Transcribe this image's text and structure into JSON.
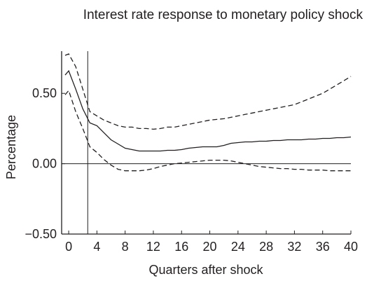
{
  "chart_data": {
    "type": "line",
    "title": "Interest rate response to monetary policy shock",
    "xlabel": "Quarters after shock",
    "ylabel": "Percentage",
    "xlim": [
      -1,
      40
    ],
    "ylim": [
      -0.5,
      0.8
    ],
    "x_ticks": [
      0,
      4,
      8,
      12,
      16,
      20,
      24,
      28,
      32,
      36,
      40
    ],
    "x_tick_labels": [
      "0",
      "4",
      "8",
      "12",
      "16",
      "20",
      "24",
      "28",
      "32",
      "36",
      "40"
    ],
    "y_ticks": [
      0.5,
      0.0,
      -0.5
    ],
    "y_tick_labels": [
      "0.50",
      "0.00",
      "−0.50"
    ],
    "reference_lines": {
      "horizontal_y": 0.0,
      "vertical_x": 2.7
    },
    "grid": false,
    "x": [
      -0.5,
      0,
      1,
      2,
      3,
      4,
      5,
      6,
      7,
      8,
      9,
      10,
      11,
      12,
      13,
      14,
      15,
      16,
      17,
      18,
      19,
      20,
      21,
      22,
      23,
      24,
      25,
      26,
      27,
      28,
      29,
      30,
      31,
      32,
      33,
      34,
      35,
      36,
      37,
      38,
      39,
      40
    ],
    "series": [
      {
        "style": "solid",
        "values": [
          0.63,
          0.66,
          0.53,
          0.39,
          0.29,
          0.27,
          0.22,
          0.17,
          0.14,
          0.11,
          0.1,
          0.09,
          0.09,
          0.09,
          0.09,
          0.095,
          0.095,
          0.1,
          0.11,
          0.115,
          0.12,
          0.12,
          0.12,
          0.13,
          0.145,
          0.15,
          0.155,
          0.155,
          0.16,
          0.16,
          0.165,
          0.165,
          0.17,
          0.17,
          0.17,
          0.175,
          0.175,
          0.18,
          0.18,
          0.185,
          0.185,
          0.19
        ]
      },
      {
        "style": "dashed",
        "values": [
          0.77,
          0.78,
          0.69,
          0.53,
          0.37,
          0.34,
          0.31,
          0.29,
          0.27,
          0.26,
          0.26,
          0.25,
          0.25,
          0.245,
          0.25,
          0.26,
          0.26,
          0.27,
          0.28,
          0.29,
          0.3,
          0.31,
          0.315,
          0.32,
          0.33,
          0.34,
          0.35,
          0.36,
          0.37,
          0.38,
          0.39,
          0.4,
          0.41,
          0.42,
          0.44,
          0.46,
          0.48,
          0.5,
          0.53,
          0.56,
          0.59,
          0.62
        ]
      },
      {
        "style": "dashed",
        "values": [
          0.49,
          0.52,
          0.37,
          0.25,
          0.12,
          0.08,
          0.03,
          -0.01,
          -0.04,
          -0.05,
          -0.05,
          -0.05,
          -0.045,
          -0.035,
          -0.02,
          -0.01,
          0.0,
          0.005,
          0.01,
          0.015,
          0.02,
          0.025,
          0.025,
          0.025,
          0.02,
          0.01,
          0.0,
          -0.01,
          -0.02,
          -0.025,
          -0.03,
          -0.035,
          -0.035,
          -0.04,
          -0.04,
          -0.045,
          -0.045,
          -0.045,
          -0.05,
          -0.05,
          -0.05,
          -0.05
        ]
      }
    ]
  }
}
